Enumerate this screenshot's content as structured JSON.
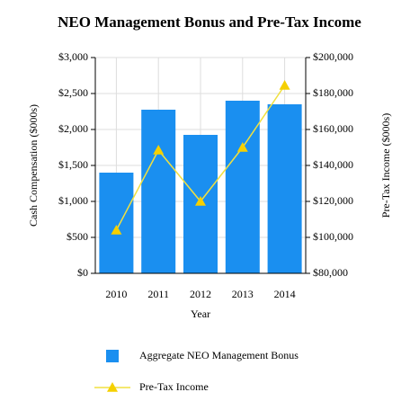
{
  "chart_data": {
    "type": "bar-line",
    "title": "NEO Management Bonus and Pre-Tax Income",
    "x_label": "Year",
    "y_label": "Cash Compensation ($000s)",
    "y2_label": "Pre-Tax Income ($000s)",
    "categories": [
      "2010",
      "2011",
      "2012",
      "2013",
      "2014"
    ],
    "series": [
      {
        "name": "Aggregate NEO Management Bonus",
        "type": "bar",
        "color": "#1a8ff0",
        "values": [
          1400,
          2275,
          1925,
          2400,
          2350
        ]
      },
      {
        "name": "Pre-Tax Income",
        "type": "line",
        "axis": "y2",
        "color": "#f0e040",
        "marker_color": "#f5d000",
        "values": [
          104000,
          148500,
          120000,
          150000,
          184500
        ]
      }
    ],
    "ylim": [
      0,
      3000
    ],
    "yticks": [
      {
        "value": 0,
        "label": "$0"
      },
      {
        "value": 500,
        "label": "$500"
      },
      {
        "value": 1000,
        "label": "$1,000"
      },
      {
        "value": 1500,
        "label": "$1,500"
      },
      {
        "value": 2000,
        "label": "$2,000"
      },
      {
        "value": 2500,
        "label": "$2,500"
      },
      {
        "value": 3000,
        "label": "$3,000"
      }
    ],
    "y2lim": [
      80000,
      200000
    ],
    "y2ticks": [
      {
        "value": 80000,
        "label": "$80,000"
      },
      {
        "value": 100000,
        "label": "$100,000"
      },
      {
        "value": 120000,
        "label": "$120,000"
      },
      {
        "value": 140000,
        "label": "$140,000"
      },
      {
        "value": 160000,
        "label": "$160,000"
      },
      {
        "value": 180000,
        "label": "$180,000"
      },
      {
        "value": 200000,
        "label": "$200,000"
      }
    ],
    "grid": true,
    "legend": "bottom"
  }
}
